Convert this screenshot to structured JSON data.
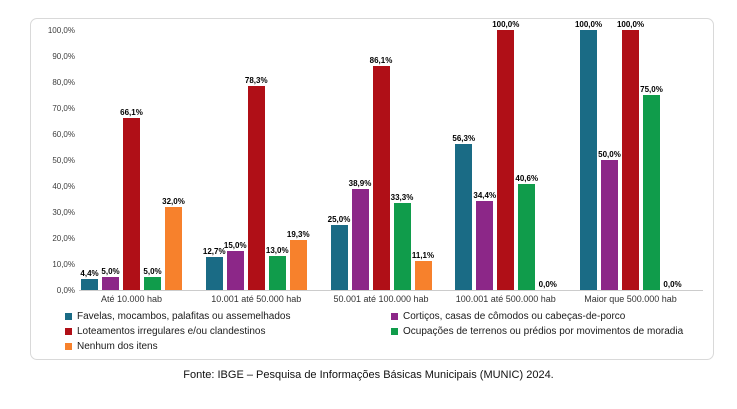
{
  "chart_data": {
    "type": "bar",
    "title": "",
    "xlabel": "",
    "ylabel": "",
    "ylim": [
      0,
      100
    ],
    "grid": false,
    "legend_position": "bottom",
    "yticks": [
      "100,0%",
      "90,0%",
      "80,0%",
      "70,0%",
      "60,0%",
      "50,0%",
      "40,0%",
      "30,0%",
      "20,0%",
      "10,0%",
      "0,0%"
    ],
    "categories": [
      "Até 10.000 hab",
      "10.001 até 50.000 hab",
      "50.001 até 100.000 hab",
      "100.001 até 500.000 hab",
      "Maior que 500.000 hab"
    ],
    "series": [
      {
        "name": "Favelas, mocambos, palafitas ou assemelhados",
        "color": "#1A6B85",
        "values": [
          4.4,
          12.7,
          25.0,
          56.3,
          100.0
        ],
        "labels": [
          "4,4%",
          "12,7%",
          "25,0%",
          "56,3%",
          "100,0%"
        ]
      },
      {
        "name": "Cortiços, casas de cômodos ou cabeças-de-porco",
        "color": "#8C2788",
        "values": [
          5.0,
          15.0,
          38.9,
          34.4,
          50.0
        ],
        "labels": [
          "5,0%",
          "15,0%",
          "38,9%",
          "34,4%",
          "50,0%"
        ]
      },
      {
        "name": "Loteamentos irregulares e/ou clandestinos",
        "color": "#B00F17",
        "values": [
          66.1,
          78.3,
          86.1,
          100.0,
          100.0
        ],
        "labels": [
          "66,1%",
          "78,3%",
          "86,1%",
          "100,0%",
          "100,0%"
        ]
      },
      {
        "name": "Ocupações de terrenos ou prédios por movimentos de moradia",
        "color": "#109C4B",
        "values": [
          5.0,
          13.0,
          33.3,
          40.6,
          75.0
        ],
        "labels": [
          "5,0%",
          "13,0%",
          "33,3%",
          "40,6%",
          "75,0%"
        ]
      },
      {
        "name": "Nenhum dos itens",
        "color": "#F7812C",
        "values": [
          32.0,
          19.3,
          11.1,
          0.0,
          0.0
        ],
        "labels": [
          "32,0%",
          "19,3%",
          "11,1%",
          "0,0%",
          "0,0%"
        ]
      }
    ]
  },
  "footer": {
    "source": "Fonte: IBGE – Pesquisa de Informações Básicas Municipais (MUNIC) 2024."
  }
}
